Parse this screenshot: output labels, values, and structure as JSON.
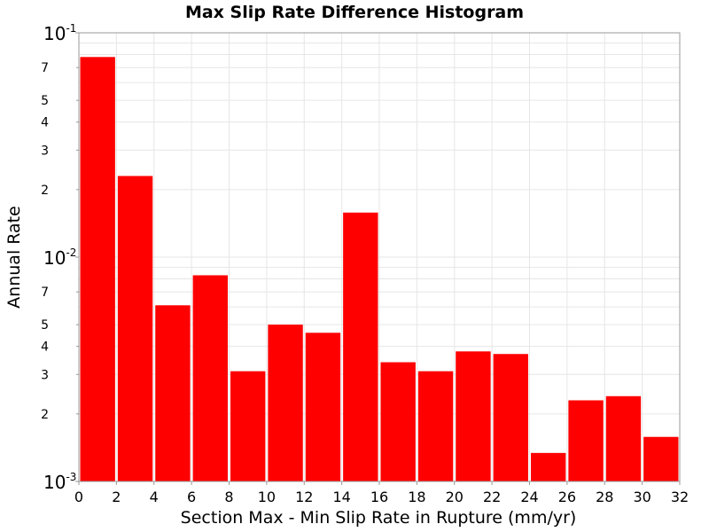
{
  "chart_data": {
    "type": "bar",
    "title": "Max Slip Rate Difference Histogram",
    "xlabel": "Section Max - Min Slip Rate in Rupture (mm/yr)",
    "ylabel": "Annual Rate",
    "xlim": [
      0,
      32
    ],
    "ylim": [
      0.001,
      0.1
    ],
    "yscale": "log",
    "grid": true,
    "bar_color": "#ff0000",
    "bin_width": 2,
    "x_ticks": [
      "0",
      "2",
      "4",
      "6",
      "8",
      "10",
      "12",
      "14",
      "16",
      "18",
      "20",
      "22",
      "24",
      "26",
      "28",
      "30",
      "32"
    ],
    "y_major_ticks": [
      {
        "base": "10",
        "exp": "-1",
        "value": 0.1
      },
      {
        "base": "10",
        "exp": "-2",
        "value": 0.01
      },
      {
        "base": "10",
        "exp": "-3",
        "value": 0.001
      }
    ],
    "y_minor_ticks": [
      {
        "label": "7",
        "value": 0.07
      },
      {
        "label": "5",
        "value": 0.05
      },
      {
        "label": "4",
        "value": 0.04
      },
      {
        "label": "3",
        "value": 0.03
      },
      {
        "label": "2",
        "value": 0.02
      },
      {
        "label": "7",
        "value": 0.007
      },
      {
        "label": "5",
        "value": 0.005
      },
      {
        "label": "4",
        "value": 0.004
      },
      {
        "label": "3",
        "value": 0.003
      },
      {
        "label": "2",
        "value": 0.002
      }
    ],
    "bins": [
      {
        "x_start": 0,
        "value": 0.078
      },
      {
        "x_start": 2,
        "value": 0.023
      },
      {
        "x_start": 4,
        "value": 0.0061
      },
      {
        "x_start": 6,
        "value": 0.0083
      },
      {
        "x_start": 8,
        "value": 0.0031
      },
      {
        "x_start": 10,
        "value": 0.005
      },
      {
        "x_start": 12,
        "value": 0.0046
      },
      {
        "x_start": 14,
        "value": 0.0158
      },
      {
        "x_start": 16,
        "value": 0.0034
      },
      {
        "x_start": 18,
        "value": 0.0031
      },
      {
        "x_start": 20,
        "value": 0.0038
      },
      {
        "x_start": 22,
        "value": 0.0037
      },
      {
        "x_start": 24,
        "value": 0.00134
      },
      {
        "x_start": 26,
        "value": 0.0023
      },
      {
        "x_start": 28,
        "value": 0.0024
      },
      {
        "x_start": 30,
        "value": 0.00158
      }
    ]
  }
}
